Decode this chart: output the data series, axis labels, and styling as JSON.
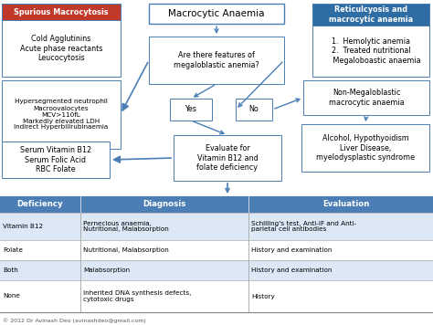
{
  "title": "Macrocytic Anaemia",
  "spurious_header": "Spurious Macrocytosis",
  "spurious_content": "Cold Agglutinins\nAcute phase reactants\nLeucocytosis",
  "reticulocytosis_header": "Reticulcyosis and\nmacrocytic anaemia",
  "reticulocytosis_content": "1.  Hemolytic anemia\n2.  Treated nutritional\n     Megaloboastic anaemia",
  "features_text": "Are there features of\nmegaloblastic anemia?",
  "hyperseg_text": "Hypersegmented neutrophil\nMacroovalocytes\nMCV>110fL\nMarkedly elevated LDH\nIndirect Hyperbilirubinaemia",
  "yes_text": "Yes",
  "no_text": "No",
  "non_mega_text": "Non-Megaloblastic\nmacrocytic anaemia",
  "evaluate_text": "Evaluate for\nVitamin B12 and\nfolate deficiency",
  "serum_text": "Serum Vitamin B12\nSerum Folic Acid\nRBC Folate",
  "alcohol_text": "Alcohol, Hypothyoidism\nLiver Disease,\nmyelodysplastic syndrome",
  "table_headers": [
    "Deficiency",
    "Diagnosis",
    "Evaluation"
  ],
  "table_rows": [
    [
      "Vitamin B12",
      "Pernecious anaemia,\nNutritional, Malabsorption",
      "Schilling's test, Anti-IF and Anti-\nparietal cell antibodies"
    ],
    [
      "Folate",
      "Nutritional, Malabsorption",
      "History and examination"
    ],
    [
      "Both",
      "Malabsorption",
      "History and examination"
    ],
    [
      "None",
      "Inherited DNA synthesis defects,\ncytotoxic drugs",
      "History"
    ]
  ],
  "copyright": "© 2012 Dr Avinash Deo (avinashdeo@gmail.com)",
  "blue": "#4a7eb5",
  "dark_blue": "#2e6da4",
  "red": "#c0392b",
  "arrow_color": "#4a7eb5",
  "table_header_color": "#4a7eb5",
  "row_alt_color": "#dce8f5",
  "row_color": "#ffffff",
  "border_color": "#4a7eb5"
}
